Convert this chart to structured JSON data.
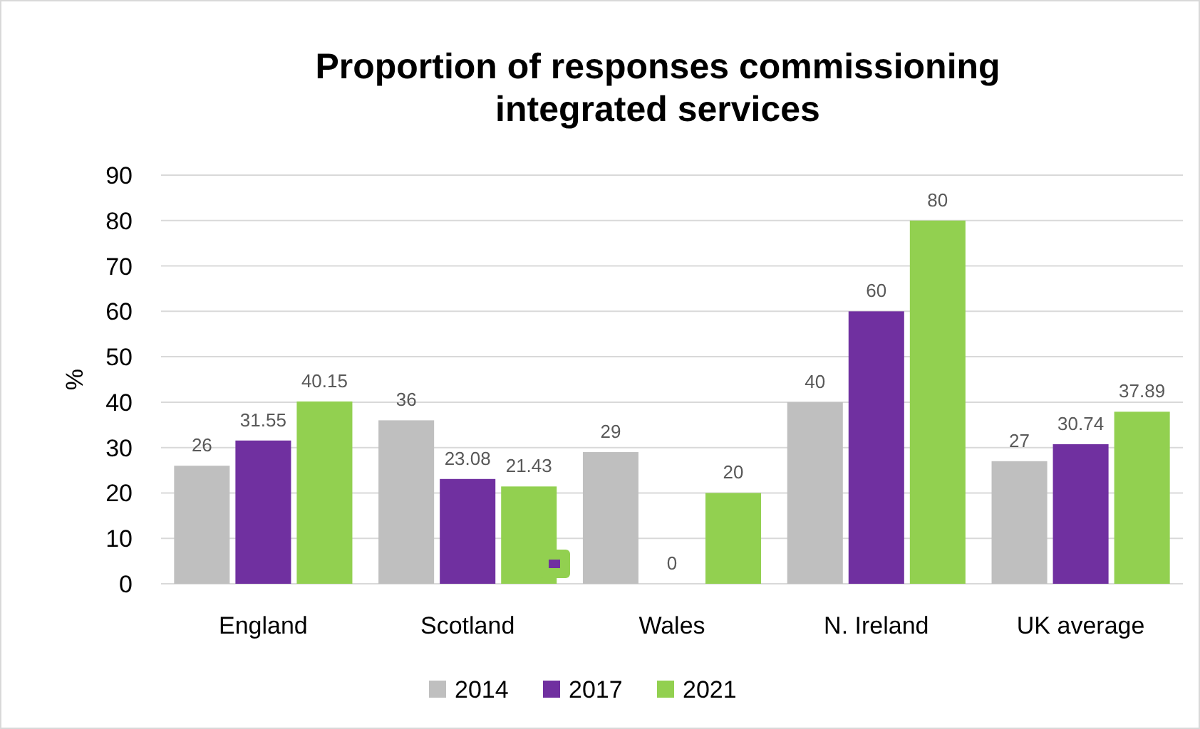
{
  "chart_data": {
    "type": "bar",
    "title": "Proportion of responses commissioning integrated services",
    "ylabel": "%",
    "categories": [
      "England",
      "Scotland",
      "Wales",
      "N. Ireland",
      "UK average"
    ],
    "series": [
      {
        "name": "2014",
        "color": "#bfbfbf",
        "values": [
          26,
          36,
          29,
          40,
          27
        ]
      },
      {
        "name": "2017",
        "color": "#7030a0",
        "values": [
          31.55,
          23.08,
          0,
          60,
          30.74
        ]
      },
      {
        "name": "2021",
        "color": "#92d050",
        "values": [
          40.15,
          21.43,
          20,
          80,
          37.89
        ]
      }
    ],
    "ylim": [
      0,
      90
    ],
    "yticks": [
      0,
      10,
      20,
      30,
      40,
      50,
      60,
      70,
      80,
      90
    ],
    "grid": "y",
    "legend": "bottom",
    "data_labels": true
  }
}
